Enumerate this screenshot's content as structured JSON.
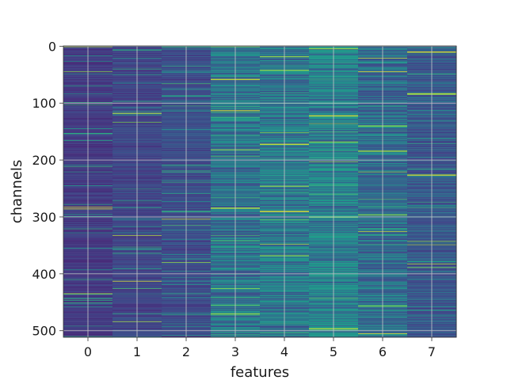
{
  "chart_data": {
    "type": "heatmap",
    "xlabel": "features",
    "ylabel": "channels",
    "x_categories": [
      "0",
      "1",
      "2",
      "3",
      "4",
      "5",
      "6",
      "7"
    ],
    "y_ticks": [
      0,
      100,
      200,
      300,
      400,
      500
    ],
    "y_range": [
      0,
      511
    ],
    "n_channels": 512,
    "n_features": 8,
    "grid": true,
    "colormap": "viridis",
    "colorscale_range": [
      0,
      1
    ],
    "colors": {
      "low": "#440154",
      "mid": "#21918c",
      "high": "#fde725",
      "grid": "#c8c8c8"
    },
    "column_mean_intensity": [
      0.22,
      0.25,
      0.27,
      0.36,
      0.38,
      0.4,
      0.35,
      0.3
    ],
    "notable_bright_rows": [
      {
        "feature": 3,
        "channels": [
          0,
          58,
          284,
          470
        ]
      },
      {
        "feature": 4,
        "channels": [
          18,
          42,
          172,
          290,
          368
        ]
      },
      {
        "feature": 5,
        "channels": [
          4,
          122,
          168,
          300,
          496
        ]
      },
      {
        "feature": 6,
        "channels": [
          140,
          184,
          296,
          456
        ]
      },
      {
        "feature": 7,
        "channels": [
          10,
          84,
          226
        ]
      }
    ]
  }
}
